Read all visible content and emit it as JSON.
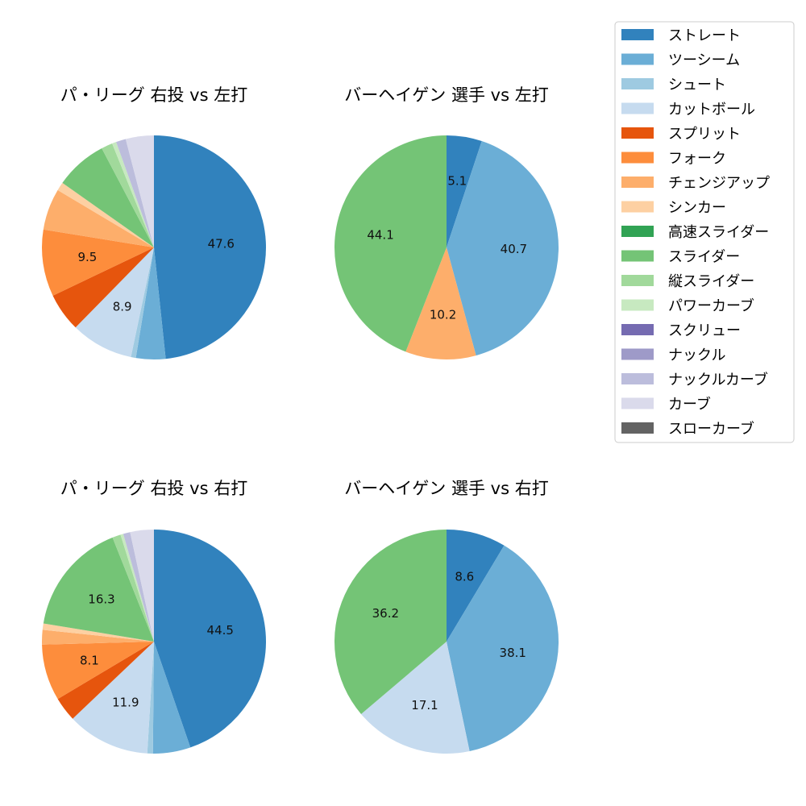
{
  "legend": {
    "items": [
      {
        "label": "ストレート",
        "color": "#3182bd"
      },
      {
        "label": "ツーシーム",
        "color": "#6baed6"
      },
      {
        "label": "シュート",
        "color": "#9ecae1"
      },
      {
        "label": "カットボール",
        "color": "#c6dbef"
      },
      {
        "label": "スプリット",
        "color": "#e6550d"
      },
      {
        "label": "フォーク",
        "color": "#fd8d3c"
      },
      {
        "label": "チェンジアップ",
        "color": "#fdae6b"
      },
      {
        "label": "シンカー",
        "color": "#fdd0a2"
      },
      {
        "label": "高速スライダー",
        "color": "#31a354"
      },
      {
        "label": "スライダー",
        "color": "#74c476"
      },
      {
        "label": "縦スライダー",
        "color": "#a1d99b"
      },
      {
        "label": "パワーカーブ",
        "color": "#c7e9c0"
      },
      {
        "label": "スクリュー",
        "color": "#756bb1"
      },
      {
        "label": "ナックル",
        "color": "#9e9ac8"
      },
      {
        "label": "ナックルカーブ",
        "color": "#bcbddc"
      },
      {
        "label": "カーブ",
        "color": "#dadaeb"
      },
      {
        "label": "スローカーブ",
        "color": "#636363"
      }
    ]
  },
  "chart_data": [
    {
      "type": "pie",
      "title": "パ・リーグ 右投 vs 左打",
      "slices": [
        {
          "label": "ストレート",
          "value": 47.6,
          "shown": "47.6"
        },
        {
          "label": "ツーシーム",
          "value": 4.2,
          "shown": ""
        },
        {
          "label": "シュート",
          "value": 0.7,
          "shown": ""
        },
        {
          "label": "カットボール",
          "value": 8.9,
          "shown": "8.9"
        },
        {
          "label": "スプリット",
          "value": 5.5,
          "shown": ""
        },
        {
          "label": "フォーク",
          "value": 9.5,
          "shown": "9.5"
        },
        {
          "label": "チェンジアップ",
          "value": 5.9,
          "shown": ""
        },
        {
          "label": "シンカー",
          "value": 1.2,
          "shown": ""
        },
        {
          "label": "スライダー",
          "value": 7.4,
          "shown": ""
        },
        {
          "label": "縦スライダー",
          "value": 1.6,
          "shown": ""
        },
        {
          "label": "パワーカーブ",
          "value": 0.6,
          "shown": ""
        },
        {
          "label": "ナックルカーブ",
          "value": 1.4,
          "shown": ""
        },
        {
          "label": "カーブ",
          "value": 4.0,
          "shown": ""
        }
      ]
    },
    {
      "type": "pie",
      "title": "バーヘイゲン 選手 vs 左打",
      "slices": [
        {
          "label": "ストレート",
          "value": 5.1,
          "shown": "5.1"
        },
        {
          "label": "ツーシーム",
          "value": 40.7,
          "shown": "40.7"
        },
        {
          "label": "チェンジアップ",
          "value": 10.2,
          "shown": "10.2"
        },
        {
          "label": "スライダー",
          "value": 44.1,
          "shown": "44.1"
        }
      ]
    },
    {
      "type": "pie",
      "title": "パ・リーグ 右投 vs 右打",
      "slices": [
        {
          "label": "ストレート",
          "value": 44.5,
          "shown": "44.5"
        },
        {
          "label": "ツーシーム",
          "value": 5.4,
          "shown": ""
        },
        {
          "label": "シュート",
          "value": 0.8,
          "shown": ""
        },
        {
          "label": "カットボール",
          "value": 11.9,
          "shown": "11.9"
        },
        {
          "label": "スプリット",
          "value": 3.5,
          "shown": ""
        },
        {
          "label": "フォーク",
          "value": 8.1,
          "shown": "8.1"
        },
        {
          "label": "チェンジアップ",
          "value": 2.1,
          "shown": ""
        },
        {
          "label": "シンカー",
          "value": 0.9,
          "shown": ""
        },
        {
          "label": "スライダー",
          "value": 16.3,
          "shown": "16.3"
        },
        {
          "label": "縦スライダー",
          "value": 1.2,
          "shown": ""
        },
        {
          "label": "パワーカーブ",
          "value": 0.4,
          "shown": ""
        },
        {
          "label": "ナックルカーブ",
          "value": 1.0,
          "shown": ""
        },
        {
          "label": "カーブ",
          "value": 3.4,
          "shown": ""
        }
      ]
    },
    {
      "type": "pie",
      "title": "バーヘイゲン 選手 vs 右打",
      "slices": [
        {
          "label": "ストレート",
          "value": 8.6,
          "shown": "8.6"
        },
        {
          "label": "ツーシーム",
          "value": 38.1,
          "shown": "38.1"
        },
        {
          "label": "カットボール",
          "value": 17.1,
          "shown": "17.1"
        },
        {
          "label": "スライダー",
          "value": 36.2,
          "shown": "36.2"
        }
      ]
    }
  ]
}
